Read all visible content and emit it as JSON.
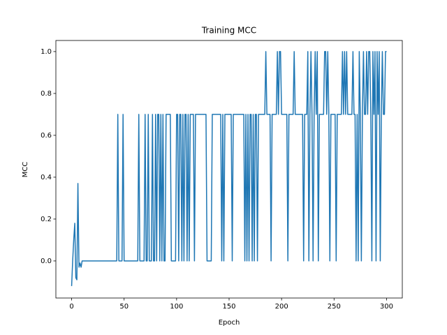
{
  "chart_data": {
    "type": "line",
    "title": "Training MCC",
    "x_label": "Epoch",
    "y_label": "MCC",
    "xlim": [
      -15,
      315
    ],
    "ylim": [
      -0.177,
      1.053
    ],
    "xticks": [
      0,
      50,
      100,
      150,
      200,
      250,
      300
    ],
    "yticks": [
      {
        "value": 0,
        "label": "0.0"
      },
      {
        "value": 0.2,
        "label": "0.2"
      },
      {
        "value": 0.4,
        "label": "0.4"
      },
      {
        "value": 0.6,
        "label": "0.6"
      },
      {
        "value": 0.8,
        "label": "0.8"
      },
      {
        "value": 1,
        "label": "1.0"
      }
    ],
    "grid": false,
    "series": [
      {
        "color": "#1f77b4",
        "x": [
          0,
          1,
          2,
          3,
          4,
          5,
          6,
          7,
          8,
          9,
          10,
          11,
          12,
          13,
          14,
          15,
          16,
          17,
          18,
          19,
          20,
          21,
          22,
          23,
          24,
          25,
          26,
          27,
          28,
          29,
          30,
          31,
          32,
          33,
          34,
          35,
          36,
          37,
          38,
          39,
          40,
          41,
          42,
          43,
          44,
          45,
          46,
          47,
          48,
          49,
          50,
          51,
          52,
          53,
          54,
          55,
          56,
          57,
          58,
          59,
          60,
          61,
          62,
          63,
          64,
          65,
          66,
          67,
          68,
          69,
          70,
          71,
          72,
          73,
          74,
          75,
          76,
          77,
          78,
          79,
          80,
          81,
          82,
          83,
          84,
          85,
          86,
          87,
          88,
          89,
          90,
          91,
          92,
          93,
          94,
          95,
          96,
          97,
          98,
          99,
          100,
          101,
          102,
          103,
          104,
          105,
          106,
          107,
          108,
          109,
          110,
          111,
          112,
          113,
          114,
          115,
          116,
          117,
          118,
          119,
          120,
          121,
          122,
          123,
          124,
          125,
          126,
          127,
          128,
          129,
          130,
          131,
          132,
          133,
          134,
          135,
          136,
          137,
          138,
          139,
          140,
          141,
          142,
          143,
          144,
          145,
          146,
          147,
          148,
          149,
          150,
          151,
          152,
          153,
          154,
          155,
          156,
          157,
          158,
          159,
          160,
          161,
          162,
          163,
          164,
          165,
          166,
          167,
          168,
          169,
          170,
          171,
          172,
          173,
          174,
          175,
          176,
          177,
          178,
          179,
          180,
          181,
          182,
          183,
          184,
          185,
          186,
          187,
          188,
          189,
          190,
          191,
          192,
          193,
          194,
          195,
          196,
          197,
          198,
          199,
          200,
          201,
          202,
          203,
          204,
          205,
          206,
          207,
          208,
          209,
          210,
          211,
          212,
          213,
          214,
          215,
          216,
          217,
          218,
          219,
          220,
          221,
          222,
          223,
          224,
          225,
          226,
          227,
          228,
          229,
          230,
          231,
          232,
          233,
          234,
          235,
          236,
          237,
          238,
          239,
          240,
          241,
          242,
          243,
          244,
          245,
          246,
          247,
          248,
          249,
          250,
          251,
          252,
          253,
          254,
          255,
          256,
          257,
          258,
          259,
          260,
          261,
          262,
          263,
          264,
          265,
          266,
          267,
          268,
          269,
          270,
          271,
          272,
          273,
          274,
          275,
          276,
          277,
          278,
          279,
          280,
          281,
          282,
          283,
          284,
          285,
          286,
          287,
          288,
          289,
          290,
          291,
          292,
          293,
          294,
          295,
          296,
          297,
          298,
          299,
          300
        ],
        "values": [
          -0.12,
          0,
          0.1,
          0.18,
          -0.08,
          -0.09,
          0.37,
          -0.03,
          -0.01,
          -0.03,
          0,
          0,
          0,
          0,
          0,
          0,
          0,
          0,
          0,
          0,
          0,
          0,
          0,
          0,
          0,
          0,
          0,
          0,
          0,
          0,
          0,
          0,
          0,
          0,
          0,
          0,
          0,
          0,
          0,
          0,
          0,
          0,
          0,
          0,
          0.7,
          0,
          0,
          0,
          0,
          0.7,
          0,
          0,
          0,
          0,
          0,
          0,
          0,
          0,
          0,
          0,
          0,
          0,
          0,
          0,
          0.7,
          0,
          0,
          0,
          0,
          0,
          0.7,
          0,
          0,
          0.7,
          0,
          0,
          0,
          0.7,
          0,
          0,
          0.7,
          0,
          0.7,
          0.7,
          0,
          0.7,
          0,
          0.7,
          0,
          0,
          0.7,
          0.7,
          0.7,
          0.7,
          0.7,
          0,
          0,
          0,
          0,
          0,
          0.7,
          0.7,
          0,
          0.7,
          0.7,
          0,
          0.7,
          0,
          0.7,
          0.7,
          0,
          0.7,
          0,
          0.7,
          0.7,
          0.7,
          0.7,
          0,
          0.7,
          0.7,
          0.7,
          0.7,
          0.7,
          0.7,
          0.7,
          0.7,
          0.7,
          0.7,
          0.7,
          0,
          0,
          0,
          0,
          0,
          0.7,
          0.7,
          0.7,
          0.7,
          0.7,
          0.7,
          0.7,
          0.7,
          0.7,
          0,
          0.7,
          0,
          0.7,
          0.7,
          0.7,
          0.7,
          0.7,
          0.7,
          0.7,
          0,
          0.7,
          0.7,
          0.7,
          0.7,
          0.7,
          0.7,
          0.7,
          0.7,
          0.7,
          0.7,
          0.7,
          0,
          0.7,
          0,
          0.7,
          0,
          0.7,
          0.7,
          0,
          0.7,
          0,
          0.7,
          0.7,
          0,
          0.7,
          0.7,
          0.7,
          0.7,
          0.7,
          0.7,
          0.7,
          1,
          0.7,
          0.7,
          0.7,
          0.7,
          0,
          0.7,
          0.7,
          0.7,
          0.7,
          0.7,
          1,
          0.7,
          1,
          1,
          0.7,
          0.7,
          0.7,
          0.7,
          0.7,
          0.7,
          0,
          0.7,
          0.7,
          0.7,
          0.7,
          0.7,
          1,
          0.7,
          0.7,
          0.7,
          0.7,
          0.7,
          0.7,
          0.7,
          0.7,
          0,
          0.7,
          0.7,
          0.7,
          1,
          0,
          0.7,
          1,
          0.7,
          0,
          0.7,
          1,
          0.7,
          1,
          0,
          0.7,
          0.7,
          0.7,
          0.7,
          0.7,
          1,
          1,
          0.7,
          1,
          0.7,
          0,
          0.7,
          0.7,
          0.7,
          0.7,
          0.7,
          0,
          0.7,
          0.7,
          0.7,
          0.7,
          0.7,
          1,
          0.7,
          1,
          0.7,
          1,
          0.7,
          0.7,
          0.7,
          0.7,
          0.7,
          1,
          0.7,
          0.7,
          0,
          0.7,
          0,
          1,
          0.7,
          0,
          0.7,
          1,
          0.7,
          0.7,
          1,
          0.7,
          1,
          1,
          0.7,
          0,
          1,
          0.7,
          1,
          0,
          1,
          0.7,
          1,
          0,
          0.7,
          1,
          0.7,
          0.7,
          1,
          1
        ]
      }
    ]
  }
}
